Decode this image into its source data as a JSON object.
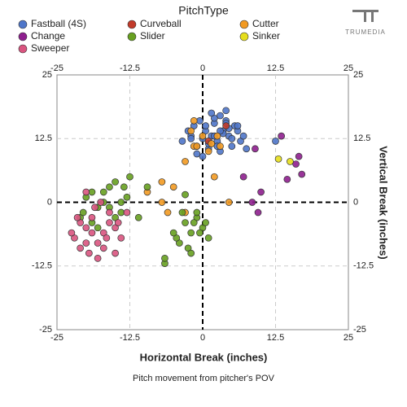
{
  "chart_data": {
    "type": "scatter",
    "legend_title": "PitchType",
    "logo": "TRUMEDIA",
    "xlabel": "Horizontal Break (inches)",
    "ylabel": "Vertical Break (inches)",
    "caption": "Pitch movement from pitcher's POV",
    "xlim": [
      -25,
      25
    ],
    "ylim": [
      -25,
      25
    ],
    "xticks": [
      -25,
      -12.5,
      0,
      12.5,
      25
    ],
    "yticks": [
      -25,
      -12.5,
      0,
      12.5,
      25
    ],
    "grid": true,
    "series": [
      {
        "name": "Fastball (4S)",
        "color": "#4f76c9",
        "x": [
          -3.5,
          -2.5,
          -2,
          -1.5,
          -1,
          -0.5,
          0,
          0.5,
          1,
          1.5,
          2,
          2.5,
          3,
          3.5,
          4,
          4.5,
          5,
          5.5,
          6,
          6.5,
          7,
          -1,
          0,
          1,
          2,
          3,
          4,
          5,
          6,
          1.5,
          2.5,
          3.5,
          4.5,
          0.5,
          -2,
          7.5,
          12.5,
          2,
          3,
          4
        ],
        "values": [
          12,
          14,
          13,
          15,
          11,
          16,
          12.5,
          14,
          10.5,
          13,
          15.5,
          12,
          17,
          14,
          16,
          13,
          11,
          15,
          14,
          12,
          13,
          9.5,
          9,
          11.5,
          16.5,
          10,
          18,
          12.5,
          15,
          17.5,
          11,
          13.5,
          14.5,
          15,
          12.5,
          10.5,
          12,
          13,
          14,
          15.5
        ]
      },
      {
        "name": "Curveball",
        "color": "#c23a2a",
        "x": [
          1,
          4
        ],
        "values": [
          12,
          15
        ]
      },
      {
        "name": "Cutter",
        "color": "#f29a22",
        "x": [
          -1.5,
          -2,
          -1.5,
          0,
          1,
          2.5,
          2,
          -3,
          -5,
          -7,
          -9.5,
          -7,
          -6,
          -3,
          4.5,
          -1,
          1.5,
          3
        ],
        "values": [
          16,
          14,
          11,
          13,
          10,
          13,
          5,
          8,
          3,
          4,
          2,
          0,
          -2,
          -2,
          0,
          11,
          11.5,
          11
        ]
      },
      {
        "name": "Change",
        "color": "#8e1f8e",
        "x": [
          9,
          13.5,
          10,
          9.5,
          7,
          8.5,
          14.5,
          16,
          17,
          16.5
        ],
        "values": [
          10.5,
          13,
          2,
          -2,
          5,
          0,
          4.5,
          7.5,
          5.5,
          9
        ]
      },
      {
        "name": "Slider",
        "color": "#67a020",
        "x": [
          -21,
          -20,
          -19,
          -18,
          -17,
          -16,
          -15,
          -14,
          -13,
          -12.5,
          -19,
          -17,
          -15,
          -13.5,
          -18,
          -16,
          -20.5,
          -14,
          -3,
          -2,
          -1,
          0,
          1,
          -4,
          -3.5,
          -2.5,
          -1.5,
          -0.5,
          -4.5,
          -6.5,
          -6.5,
          -2,
          -1,
          0.5,
          -5,
          -11,
          -3,
          -9.5
        ],
        "values": [
          -3,
          1,
          2,
          -1,
          0,
          3,
          4,
          -2,
          1,
          5,
          -4,
          2,
          -3,
          3,
          -5,
          -1,
          -2,
          0,
          -4,
          -6,
          -3,
          -5,
          -7,
          -8,
          -2,
          -9,
          -4,
          -6,
          -7,
          -12,
          -11,
          -10,
          -2,
          -4,
          -6,
          -3,
          1.5,
          3
        ]
      },
      {
        "name": "Sinker",
        "color": "#e6de1c",
        "x": [
          13,
          15
        ],
        "values": [
          8.5,
          8
        ]
      },
      {
        "name": "Sweeper",
        "color": "#d9547f",
        "x": [
          -22,
          -21,
          -20,
          -19,
          -18,
          -17,
          -16,
          -15,
          -14,
          -20,
          -18,
          -16,
          -21,
          -19,
          -17,
          -15,
          -22.5,
          -18.5,
          -13,
          -20,
          -14.5,
          -17.5,
          -16.5,
          -19.5,
          -21.5
        ],
        "values": [
          -7,
          -9,
          -5,
          -3,
          -8,
          -6,
          -4,
          -10,
          -7,
          2,
          -11,
          -2,
          -4,
          -6,
          -9,
          -5,
          -6,
          -1,
          -2,
          -8,
          -4,
          0,
          -7,
          -10,
          -3
        ]
      }
    ]
  }
}
